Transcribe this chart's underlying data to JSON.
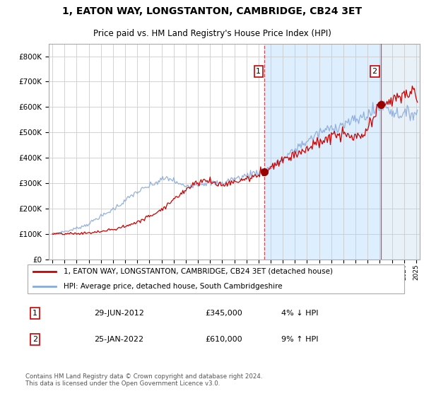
{
  "title": "1, EATON WAY, LONGSTANTON, CAMBRIDGE, CB24 3ET",
  "subtitle": "Price paid vs. HM Land Registry's House Price Index (HPI)",
  "legend_line1": "1, EATON WAY, LONGSTANTON, CAMBRIDGE, CB24 3ET (detached house)",
  "legend_line2": "HPI: Average price, detached house, South Cambridgeshire",
  "annotation1_label": "1",
  "annotation1_date": "29-JUN-2012",
  "annotation1_price": "£345,000",
  "annotation1_hpi": "4% ↓ HPI",
  "annotation2_label": "2",
  "annotation2_date": "25-JAN-2022",
  "annotation2_price": "£610,000",
  "annotation2_hpi": "9% ↑ HPI",
  "footer": "Contains HM Land Registry data © Crown copyright and database right 2024.\nThis data is licensed under the Open Government Licence v3.0.",
  "property_color": "#cc0000",
  "hpi_color": "#88aadd",
  "background_plot": "#ffffff",
  "bg_between": "#ddeeff",
  "bg_after": "#e8f0f8",
  "vline_color": "#cc3333",
  "marker1_x": 2012.5,
  "marker1_y": 345000,
  "marker2_x": 2022.08,
  "marker2_y": 610000,
  "ylim": [
    0,
    850000
  ],
  "yticks": [
    0,
    100000,
    200000,
    300000,
    400000,
    500000,
    600000,
    700000,
    800000
  ],
  "xlim_start": 1994.7,
  "xlim_end": 2025.3,
  "years_monthly_n": 362,
  "start_year": 1995.0,
  "end_year": 2025.1,
  "hpi_base": [
    100000,
    101500,
    103000,
    104000,
    105000,
    106500,
    108000,
    109000,
    110000,
    111000,
    112000,
    113000,
    115000,
    117000,
    119000,
    121000,
    123000,
    125000,
    127000,
    129000,
    131000,
    133000,
    135000,
    137000,
    141000,
    145000,
    149000,
    153000,
    157000,
    161000,
    164000,
    167000,
    170000,
    173000,
    176000,
    179000,
    183000,
    187000,
    191000,
    195000,
    199000,
    203000,
    207000,
    211000,
    215000,
    219000,
    223000,
    227000,
    232000,
    237000,
    242000,
    247000,
    252000,
    257000,
    260000,
    263000,
    266000,
    269000,
    272000,
    275000,
    278000,
    281000,
    284000,
    287000,
    290000,
    293000,
    296000,
    299000,
    302000,
    305000,
    308000,
    311000,
    314000,
    317000,
    318000,
    319000,
    318000,
    317000,
    315000,
    312000,
    308000,
    304000,
    300000,
    296000,
    293000,
    291000,
    290000,
    290000,
    291000,
    292000,
    293000,
    294000,
    295000,
    296000,
    296000,
    296000,
    297000,
    298000,
    299000,
    300000,
    301000,
    302000,
    303000,
    303000,
    302000,
    301000,
    300000,
    299000,
    298000,
    298000,
    299000,
    300000,
    302000,
    304000,
    307000,
    310000,
    313000,
    315000,
    316000,
    317000,
    318000,
    319000,
    320000,
    322000,
    324000,
    326000,
    328000,
    330000,
    332000,
    334000,
    336000,
    338000,
    340000,
    342000,
    344000,
    346000,
    348000,
    350000,
    352000,
    354000,
    356000,
    358000,
    360000,
    362000,
    364000,
    367000,
    370000,
    374000,
    378000,
    383000,
    388000,
    393000,
    398000,
    403000,
    408000,
    413000,
    418000,
    423000,
    428000,
    433000,
    438000,
    443000,
    447000,
    451000,
    455000,
    459000,
    463000,
    467000,
    471000,
    475000,
    479000,
    483000,
    487000,
    491000,
    495000,
    499000,
    502000,
    505000,
    507000,
    509000,
    511000,
    513000,
    515000,
    517000,
    519000,
    521000,
    523000,
    525000,
    527000,
    529000,
    531000,
    533000,
    535000,
    537000,
    539000,
    541000,
    543000,
    545000,
    547000,
    549000,
    552000,
    555000,
    558000,
    561000,
    564000,
    567000,
    570000,
    573000,
    576000,
    579000,
    582000,
    585000,
    590000,
    595000,
    600000,
    605000,
    610000,
    608000,
    605000,
    600000,
    595000,
    590000,
    585000,
    580000,
    578000,
    576000,
    575000,
    574000,
    573000,
    572000,
    571000,
    572000,
    573000,
    574000,
    575000,
    576000,
    577000,
    578000,
    579000,
    580000
  ],
  "noise_seed_hpi": 7,
  "noise_seed_prop": 13,
  "noise_scale_hpi": 0.022,
  "noise_scale_prop": 0.025
}
